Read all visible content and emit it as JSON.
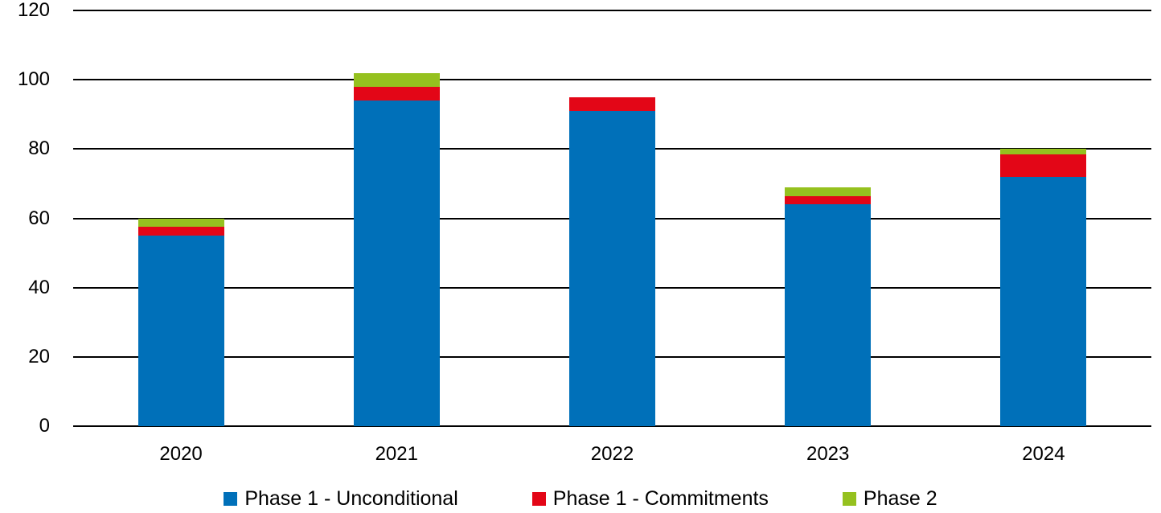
{
  "chart_data": {
    "type": "bar",
    "subtype": "stacked",
    "categories": [
      "2020",
      "2021",
      "2022",
      "2023",
      "2024"
    ],
    "series": [
      {
        "name": "Phase 1 - Unconditional",
        "color": "#0070B9",
        "values": [
          55,
          94,
          91,
          64,
          72
        ]
      },
      {
        "name": "Phase 1 - Commitments",
        "color": "#E30617",
        "values": [
          2.5,
          4,
          4,
          2.5,
          6.5
        ]
      },
      {
        "name": "Phase 2",
        "color": "#95C11F",
        "values": [
          2.5,
          4,
          0,
          2.5,
          1.5
        ]
      }
    ],
    "stack_totals": [
      60,
      102,
      95,
      69,
      80
    ],
    "title": "",
    "xlabel": "",
    "ylabel": "",
    "ylim": [
      0,
      120
    ],
    "yticks": [
      0,
      20,
      40,
      60,
      80,
      100,
      120
    ],
    "grid": true,
    "gridline_color": "#000000",
    "legend_position": "bottom",
    "background_color": "#FFFFFF"
  }
}
